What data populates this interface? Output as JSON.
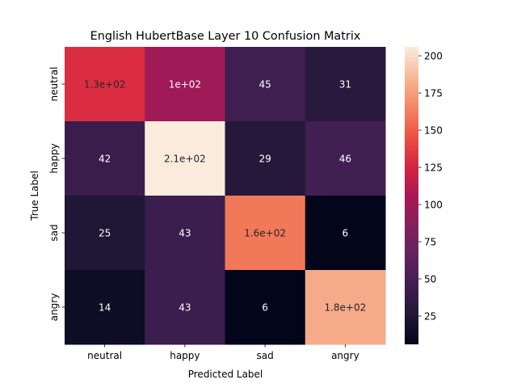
{
  "chart_data": {
    "type": "heatmap",
    "title": "English HubertBase Layer 10 Confusion Matrix",
    "xlabel": "Predicted Label",
    "ylabel": "True Label",
    "x_categories": [
      "neutral",
      "happy",
      "sad",
      "angry"
    ],
    "y_categories": [
      "neutral",
      "happy",
      "sad",
      "angry"
    ],
    "values": [
      [
        130,
        100,
        45,
        31
      ],
      [
        42,
        210,
        29,
        46
      ],
      [
        25,
        43,
        160,
        6
      ],
      [
        14,
        43,
        6,
        180
      ]
    ],
    "annotations": [
      [
        "1.3e+02",
        "1e+02",
        "45",
        "31"
      ],
      [
        "42",
        "2.1e+02",
        "29",
        "46"
      ],
      [
        "25",
        "43",
        "1.6e+02",
        "6"
      ],
      [
        "14",
        "43",
        "6",
        "1.8e+02"
      ]
    ],
    "colorbar": {
      "range": [
        6,
        206
      ],
      "ticks": [
        25,
        50,
        75,
        100,
        125,
        150,
        175,
        200
      ],
      "colormap": "rocket"
    }
  }
}
